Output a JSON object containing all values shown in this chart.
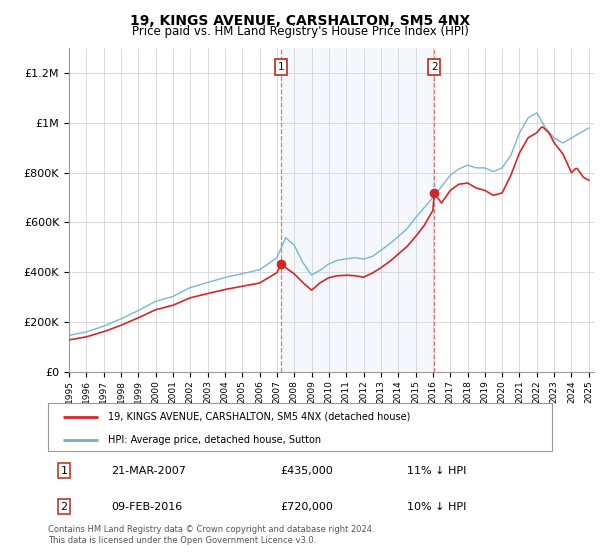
{
  "title": "19, KINGS AVENUE, CARSHALTON, SM5 4NX",
  "subtitle": "Price paid vs. HM Land Registry's House Price Index (HPI)",
  "legend_line1": "19, KINGS AVENUE, CARSHALTON, SM5 4NX (detached house)",
  "legend_line2": "HPI: Average price, detached house, Sutton",
  "annotation1_date": "21-MAR-2007",
  "annotation1_price": "£435,000",
  "annotation1_hpi": "11% ↓ HPI",
  "annotation2_date": "09-FEB-2016",
  "annotation2_price": "£720,000",
  "annotation2_hpi": "10% ↓ HPI",
  "footnote": "Contains HM Land Registry data © Crown copyright and database right 2024.\nThis data is licensed under the Open Government Licence v3.0.",
  "hpi_color": "#6baed6",
  "price_color": "#d62728",
  "shade_color": "#c6dbef",
  "vline_color": "#e06060",
  "annotation_box_color": "#c0392b",
  "ylim_min": 0,
  "ylim_max": 1300000,
  "purchase1_year": 2007.22,
  "purchase1_value": 435000,
  "purchase2_year": 2016.08,
  "purchase2_value": 720000
}
